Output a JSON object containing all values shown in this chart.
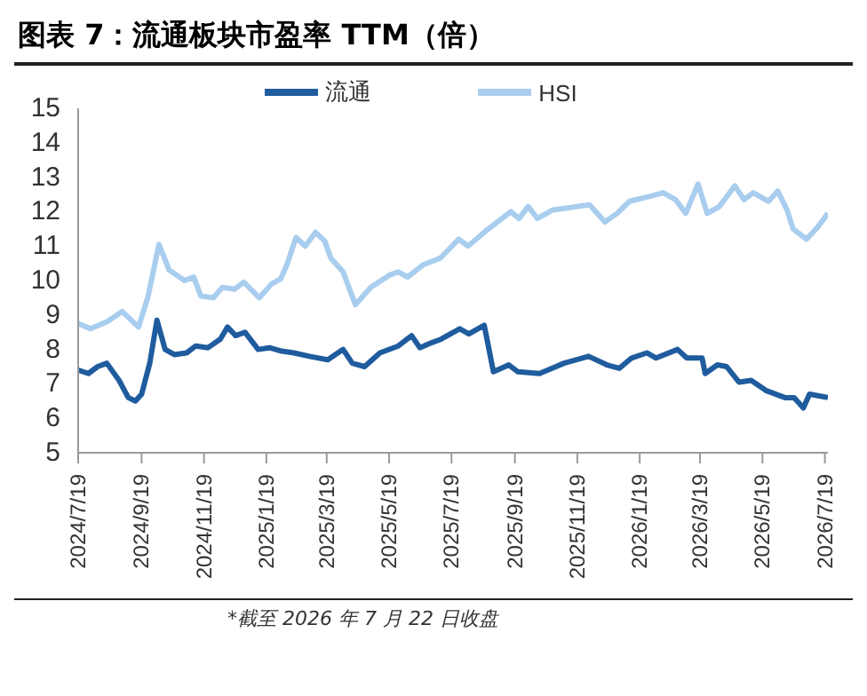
{
  "chart_data": {
    "type": "line",
    "title": "图表 7：流通板块市盈率 TTM（倍）",
    "annotations": [
      "*截至 2026 年 7 月 22 日收盘"
    ],
    "series": [
      {
        "name": "流通",
        "color": "#1f5c9e",
        "x": [
          "2024-07-19",
          "2024-07-29",
          "2024-08-07",
          "2024-08-16",
          "2024-08-28",
          "2024-09-06",
          "2024-09-13",
          "2024-09-19",
          "2024-09-27",
          "2024-10-04",
          "2024-10-12",
          "2024-10-21",
          "2024-11-02",
          "2024-11-11",
          "2024-11-23",
          "2024-12-05",
          "2024-12-12",
          "2024-12-20",
          "2024-12-29",
          "2025-01-11",
          "2025-01-22",
          "2025-02-03",
          "2025-02-15",
          "2025-03-02",
          "2025-03-20",
          "2025-04-04",
          "2025-04-13",
          "2025-04-25",
          "2025-05-10",
          "2025-05-28",
          "2025-06-10",
          "2025-06-18",
          "2025-06-30",
          "2025-07-09",
          "2025-07-27",
          "2025-08-05",
          "2025-08-20",
          "2025-08-29",
          "2025-09-13",
          "2025-09-22",
          "2025-10-13",
          "2025-10-25",
          "2025-11-06",
          "2025-11-30",
          "2025-12-18",
          "2025-12-30",
          "2026-01-11",
          "2026-01-26",
          "2026-02-04",
          "2026-02-25",
          "2026-03-06",
          "2026-03-21",
          "2026-03-24",
          "2026-04-05",
          "2026-04-14",
          "2026-04-26",
          "2026-05-08",
          "2026-05-23",
          "2026-06-10",
          "2026-06-19",
          "2026-06-28",
          "2026-07-04",
          "2026-07-22"
        ],
        "values": [
          7.4,
          7.3,
          7.5,
          7.6,
          7.1,
          6.6,
          6.5,
          6.7,
          7.6,
          8.85,
          8.0,
          7.85,
          7.9,
          8.1,
          8.05,
          8.3,
          8.65,
          8.4,
          8.5,
          8.0,
          8.05,
          7.95,
          7.9,
          7.8,
          7.7,
          8.0,
          7.6,
          7.5,
          7.9,
          8.1,
          8.4,
          8.05,
          8.2,
          8.3,
          8.6,
          8.45,
          8.7,
          7.35,
          7.55,
          7.35,
          7.3,
          7.45,
          7.6,
          7.8,
          7.55,
          7.45,
          7.75,
          7.9,
          7.75,
          8.0,
          7.75,
          7.75,
          7.3,
          7.55,
          7.5,
          7.05,
          7.1,
          6.8,
          6.6,
          6.6,
          6.3,
          6.7,
          6.6
        ]
      },
      {
        "name": "HSI",
        "color": "#a8cdee",
        "x": [
          "2024-07-19",
          "2024-07-31",
          "2024-08-16",
          "2024-08-31",
          "2024-09-16",
          "2024-09-25",
          "2024-10-06",
          "2024-10-16",
          "2024-10-31",
          "2024-11-09",
          "2024-11-16",
          "2024-11-28",
          "2024-12-07",
          "2024-12-19",
          "2024-12-28",
          "2025-01-12",
          "2025-01-24",
          "2025-02-02",
          "2025-02-08",
          "2025-02-17",
          "2025-02-26",
          "2025-03-08",
          "2025-03-17",
          "2025-03-23",
          "2025-04-04",
          "2025-04-16",
          "2025-05-01",
          "2025-05-19",
          "2025-05-28",
          "2025-06-06",
          "2025-06-21",
          "2025-07-08",
          "2025-07-26",
          "2025-08-04",
          "2025-08-22",
          "2025-09-15",
          "2025-09-23",
          "2025-10-02",
          "2025-10-11",
          "2025-10-26",
          "2025-12-01",
          "2025-12-16",
          "2025-12-28",
          "2026-01-09",
          "2026-01-30",
          "2026-02-11",
          "2026-02-23",
          "2026-03-05",
          "2026-03-17",
          "2026-03-26",
          "2026-04-07",
          "2026-04-22",
          "2026-05-01",
          "2026-05-10",
          "2026-05-25",
          "2026-06-03",
          "2026-06-12",
          "2026-06-18",
          "2026-07-01",
          "2026-07-12",
          "2026-07-22"
        ],
        "values": [
          8.75,
          8.6,
          8.8,
          9.1,
          8.65,
          9.5,
          11.05,
          10.3,
          10.0,
          10.1,
          9.55,
          9.5,
          9.8,
          9.75,
          9.95,
          9.5,
          9.9,
          10.05,
          10.45,
          11.25,
          11.0,
          11.4,
          11.15,
          10.65,
          10.25,
          9.3,
          9.8,
          10.15,
          10.25,
          10.1,
          10.45,
          10.65,
          11.2,
          11.0,
          11.45,
          12.0,
          11.8,
          12.15,
          11.8,
          12.05,
          12.2,
          11.7,
          11.95,
          12.3,
          12.45,
          12.55,
          12.35,
          11.95,
          12.8,
          11.95,
          12.15,
          12.75,
          12.35,
          12.55,
          12.3,
          12.6,
          12.05,
          11.5,
          11.2,
          11.55,
          11.95
        ]
      }
    ],
    "xlim": [
      "2024-07-19",
      "2026-07-22"
    ],
    "xticks": [
      {
        "value": "2024-07-19",
        "label": "2024/7/19"
      },
      {
        "value": "2024-09-19",
        "label": "2024/9/19"
      },
      {
        "value": "2024-11-19",
        "label": "2024/11/19"
      },
      {
        "value": "2025-01-19",
        "label": "2025/1/19"
      },
      {
        "value": "2025-03-19",
        "label": "2025/3/19"
      },
      {
        "value": "2025-05-19",
        "label": "2025/5/19"
      },
      {
        "value": "2025-07-19",
        "label": "2025/7/19"
      },
      {
        "value": "2025-09-19",
        "label": "2025/9/19"
      },
      {
        "value": "2025-11-19",
        "label": "2025/11/19"
      },
      {
        "value": "2026-01-19",
        "label": "2026/1/19"
      },
      {
        "value": "2026-03-19",
        "label": "2026/3/19"
      },
      {
        "value": "2026-05-19",
        "label": "2026/5/19"
      },
      {
        "value": "2026-07-19",
        "label": "2026/7/19"
      }
    ],
    "ylim": [
      5,
      15
    ],
    "yticks": [
      5,
      6,
      7,
      8,
      9,
      10,
      11,
      12,
      13,
      14,
      15
    ],
    "grid": false,
    "legend": "top",
    "marker": "none",
    "line_style": "solid"
  }
}
